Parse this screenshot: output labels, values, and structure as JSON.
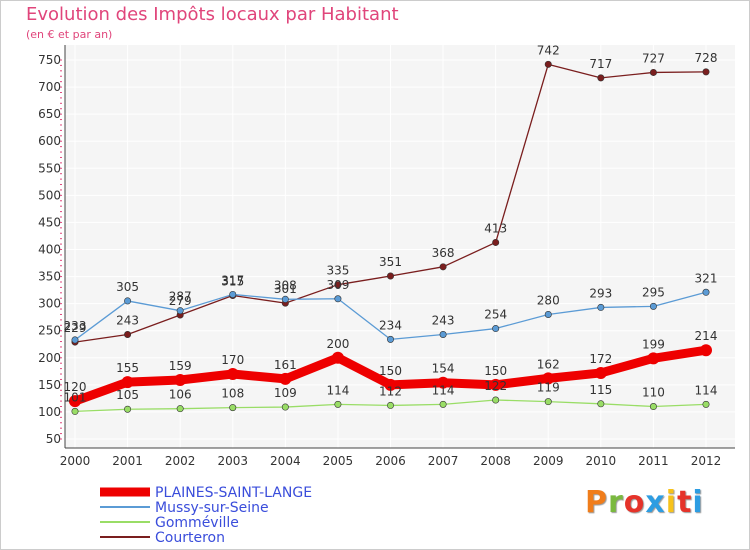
{
  "title": "Evolution des Impôts locaux par Habitant",
  "subtitle": "(en € et par an)",
  "logo": {
    "text": "Proxiti",
    "colors": [
      "#f07d1b",
      "#7ab93f",
      "#e5332a",
      "#2d9de2",
      "#f7c21b",
      "#e5332a",
      "#2d9de2"
    ]
  },
  "chart_data": {
    "type": "line",
    "x": [
      "2000",
      "2001",
      "2002",
      "2003",
      "2004",
      "2005",
      "2006",
      "2007",
      "2008",
      "2009",
      "2010",
      "2011",
      "2012"
    ],
    "ylim": [
      50,
      750
    ],
    "yticks": [
      "50",
      "100",
      "150",
      "200",
      "250",
      "300",
      "350",
      "400",
      "450",
      "500",
      "550",
      "600",
      "650",
      "700",
      "750"
    ],
    "grid": true,
    "legend_position": "bottom-left",
    "series": [
      {
        "name": "PLAINES-SAINT-LANGE",
        "color": "#ee0000",
        "values": [
          120,
          155,
          159,
          170,
          161,
          200,
          150,
          154,
          150,
          162,
          172,
          199,
          214
        ],
        "labels": [
          "120",
          "155",
          "159",
          "170",
          "161",
          "200",
          "150",
          "154",
          "150",
          "162",
          "172",
          "199",
          "214"
        ]
      },
      {
        "name": "Mussy-sur-Seine",
        "color": "#5b9bd5",
        "values": [
          233,
          305,
          287,
          317,
          308,
          309,
          234,
          243,
          254,
          280,
          293,
          295,
          321
        ],
        "labels": [
          "233",
          "305",
          "287",
          "317",
          "308",
          "309",
          "234",
          "243",
          "254",
          "280",
          "293",
          "295",
          "321"
        ]
      },
      {
        "name": "Gomméville",
        "color": "#99dd66",
        "values": [
          101,
          105,
          106,
          108,
          109,
          114,
          112,
          114,
          122,
          119,
          115,
          110,
          114
        ],
        "labels": [
          "101",
          "105",
          "106",
          "108",
          "109",
          "114",
          "112",
          "114",
          "122",
          "119",
          "115",
          "110",
          "114"
        ]
      },
      {
        "name": "Courteron",
        "color": "#7a1e1e",
        "values": [
          229,
          243,
          279,
          315,
          301,
          335,
          351,
          368,
          413,
          742,
          717,
          727,
          728
        ],
        "labels": [
          "229",
          "243",
          "279",
          "315",
          "301",
          "335",
          "351",
          "368",
          "413",
          "742",
          "717",
          "727",
          "728"
        ]
      }
    ]
  }
}
